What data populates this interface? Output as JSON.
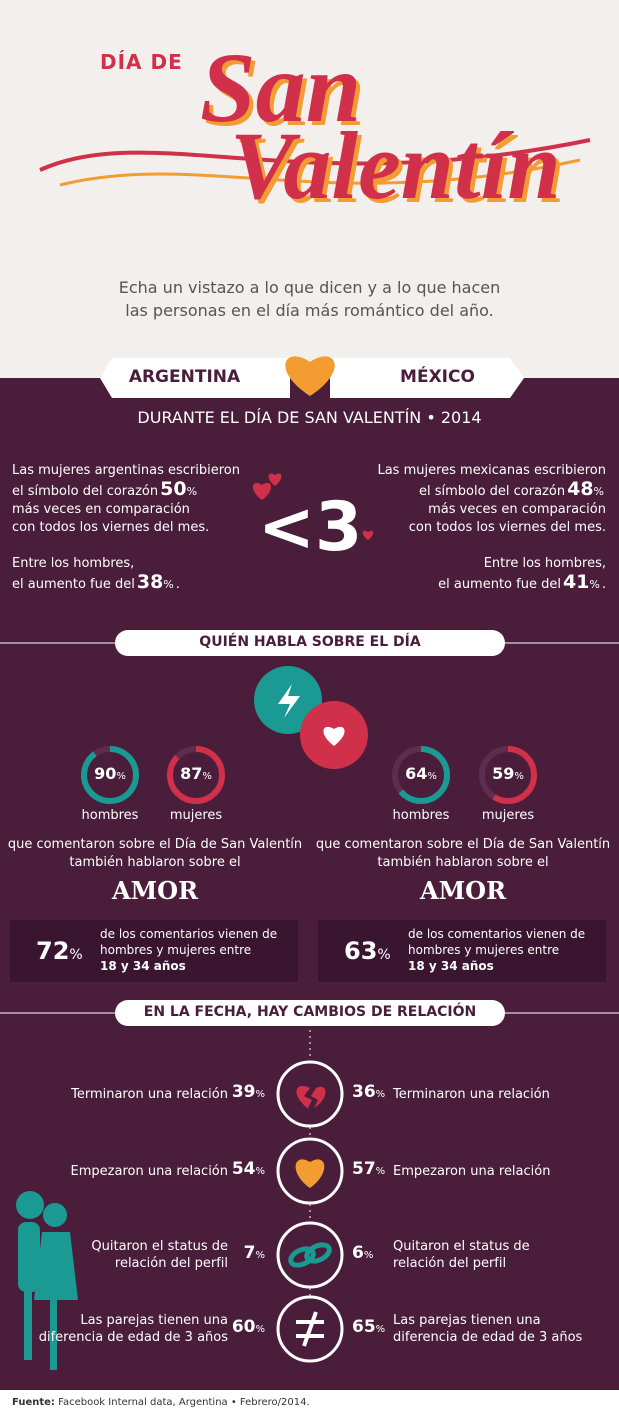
{
  "header": {
    "title_top": "DÍA DE",
    "title_1": "San",
    "title_2": "Valentín",
    "intro": [
      "Echa un vistazo a lo que dicen y a lo que hacen",
      "las personas en el día más romántico del año."
    ]
  },
  "unit": "%",
  "countries": [
    "ARGENTINA",
    "MÉXICO"
  ],
  "period": "DURANTE EL DÍA DE SAN VALENTÍN • 2014",
  "heart_symbol": "<3",
  "heart_stats": [
    {
      "lines_before": [
        "Las mujeres argentinas escribieron",
        "el símbolo del corazón"
      ],
      "women_value": 50,
      "lines_after": [
        "más veces en comparación",
        "con todos los viernes del mes."
      ],
      "men_line": "Entre los hombres,",
      "men_prefix": "el aumento fue del",
      "men_value": 38,
      "end": "."
    },
    {
      "lines_before": [
        "Las mujeres mexicanas escribieron",
        "el símbolo del corazón"
      ],
      "women_value": 48,
      "lines_after": [
        "más veces en comparación",
        "con todos los viernes del mes."
      ],
      "men_line": "Entre los hombres,",
      "men_prefix": "el aumento fue del",
      "men_value": 41,
      "end": "."
    }
  ],
  "talk": {
    "title": "QUIÉN HABLA SOBRE EL DÍA",
    "genders": [
      "hombres",
      "mujeres"
    ],
    "countries": [
      {
        "values": [
          90,
          87
        ],
        "age_share": 72
      },
      {
        "values": [
          64,
          59
        ],
        "age_share": 63
      }
    ],
    "comment_lines": [
      "que comentaron sobre el Día de San Valentín",
      "también hablaron sobre el"
    ],
    "keyword": "AMOR",
    "age_lines": [
      "de los comentarios vienen de",
      "hombres y mujeres entre"
    ],
    "age_range": "18 y 34 años"
  },
  "changes": {
    "title": "EN LA FECHA, HAY CAMBIOS DE RELACIÓN",
    "rows": [
      {
        "label": [
          "Terminaron una relación"
        ],
        "values": [
          39,
          36
        ]
      },
      {
        "label": [
          "Empezaron una relación"
        ],
        "values": [
          54,
          57
        ]
      },
      {
        "label": [
          "Quitaron el status de",
          "relación del perfil"
        ],
        "values": [
          7,
          6
        ]
      },
      {
        "label": [
          "Las parejas tienen una",
          "diferencia de edad de 3 años"
        ],
        "values": [
          60,
          65
        ]
      }
    ]
  },
  "footer": {
    "label": "Fuente:",
    "text": "Facebook Internal data, Argentina • Febrero/2014."
  }
}
